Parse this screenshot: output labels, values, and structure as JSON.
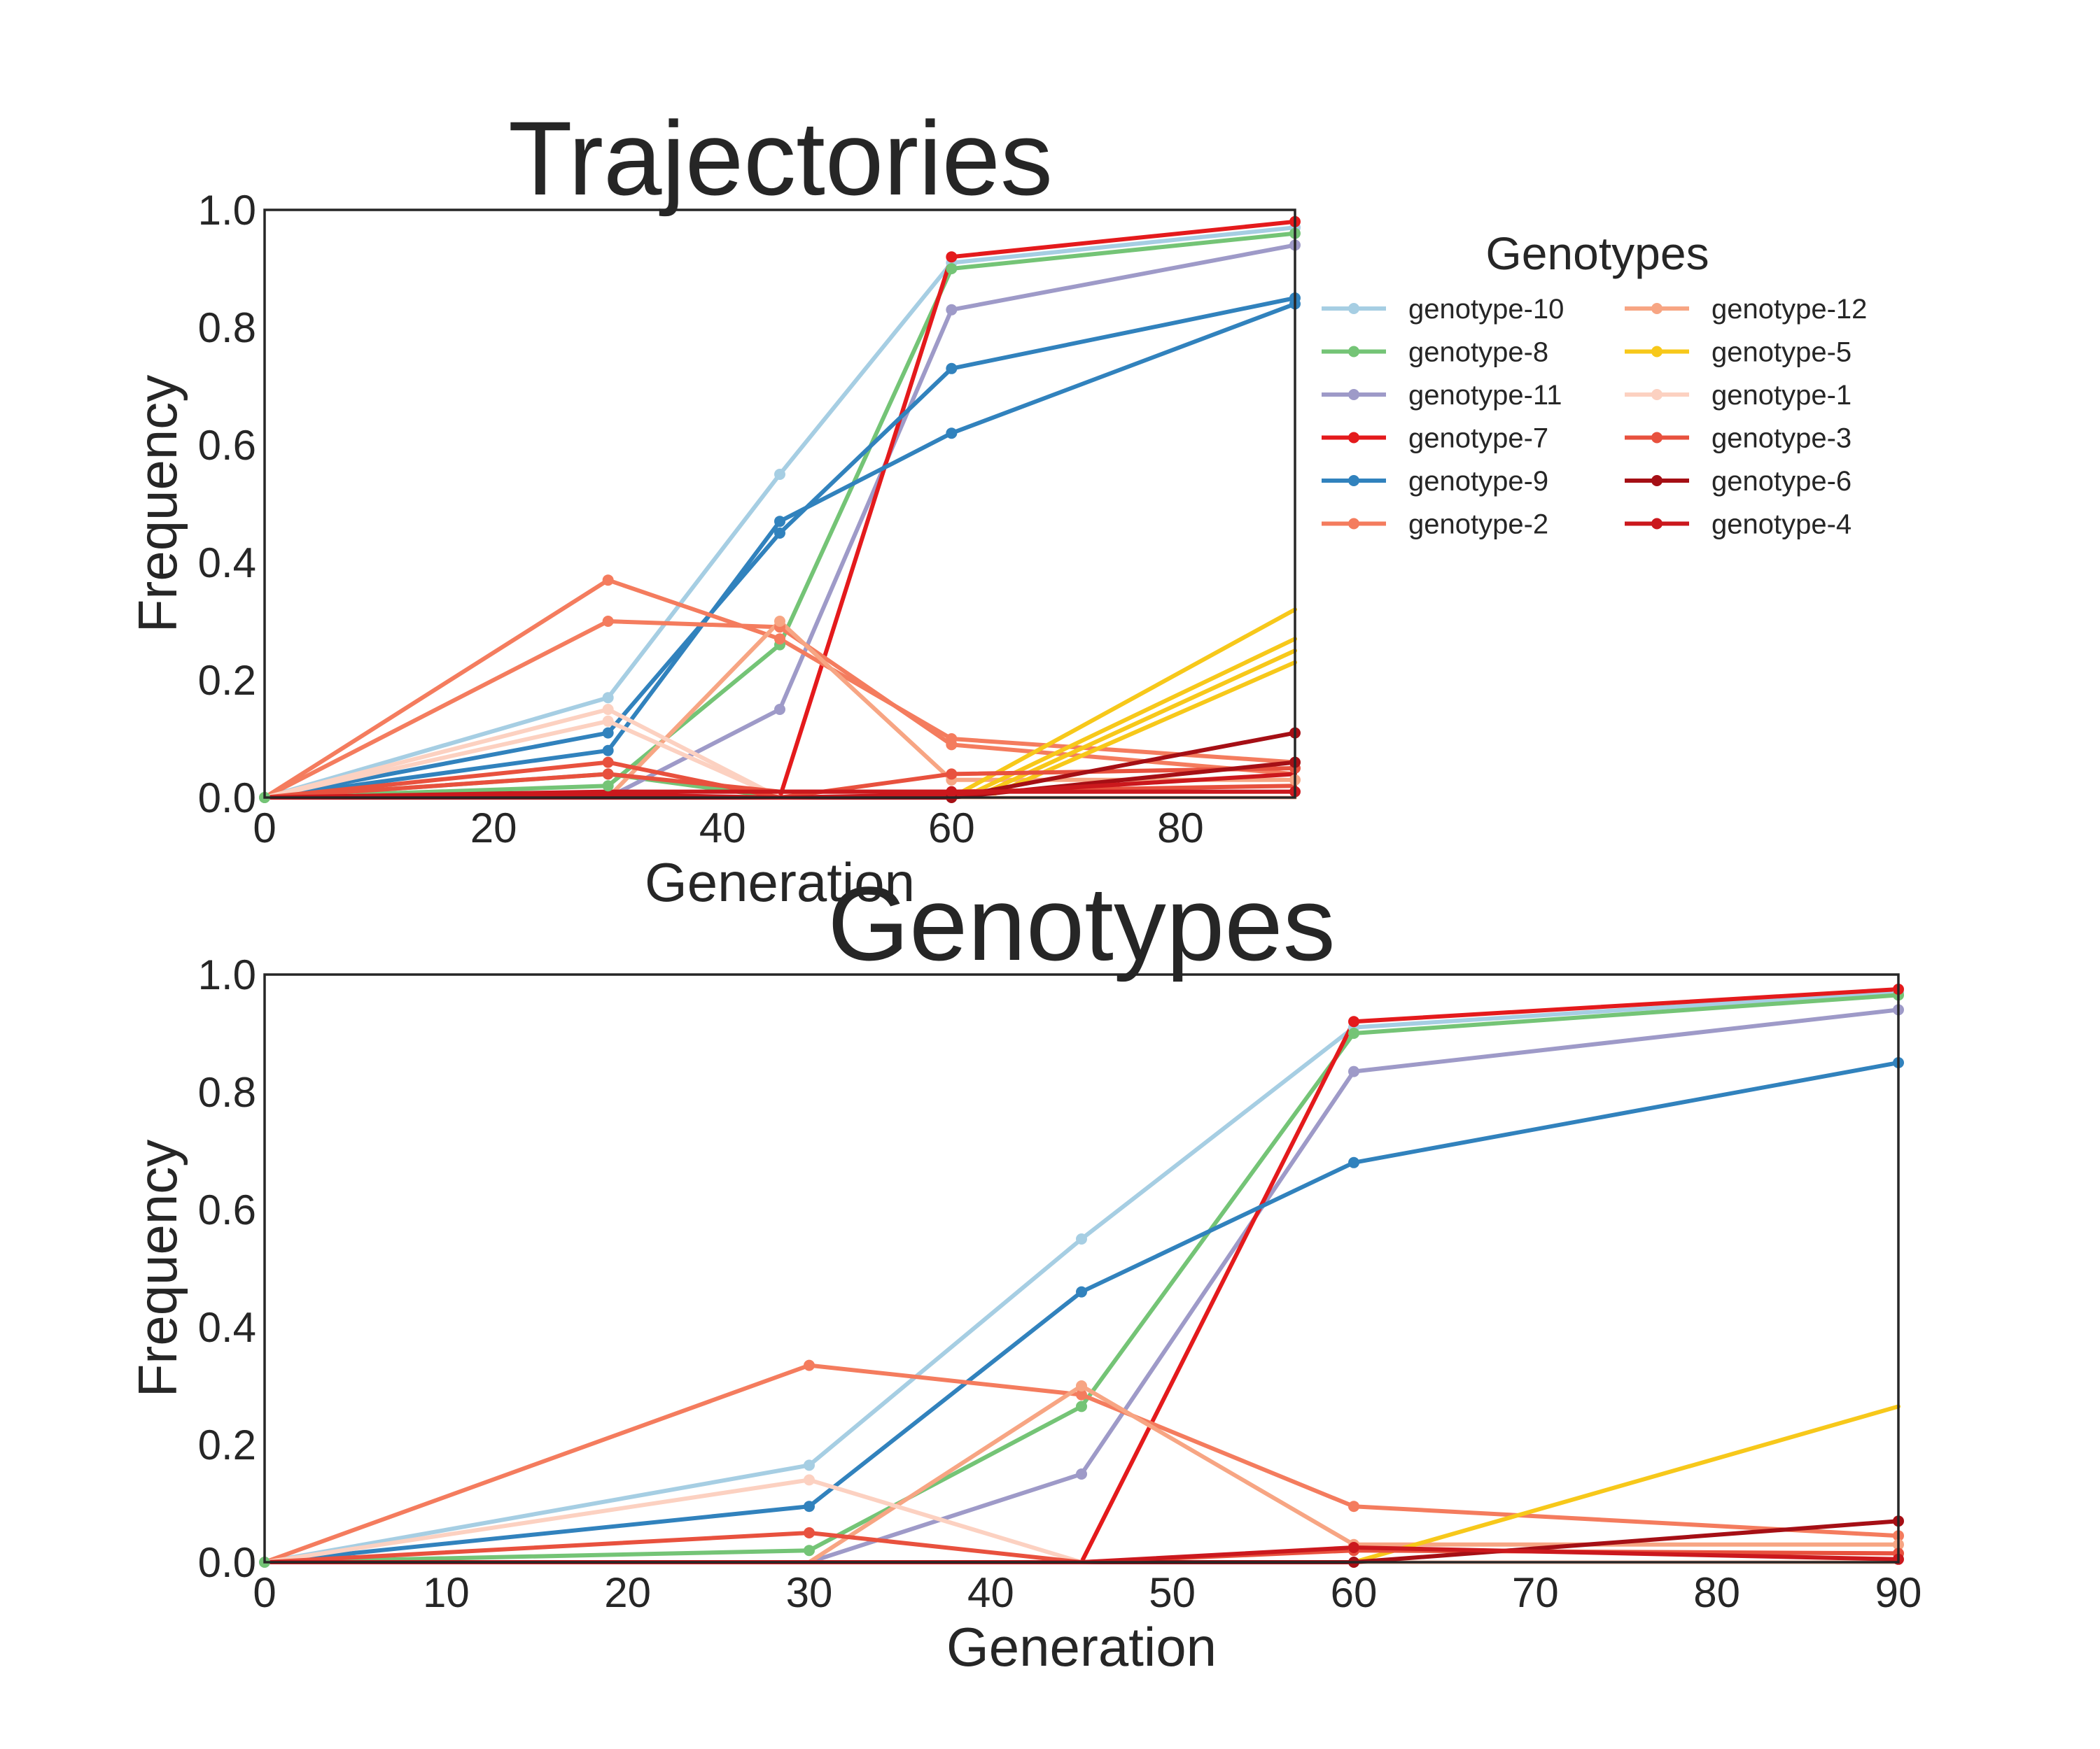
{
  "chart_data": [
    {
      "type": "line",
      "title": "Trajectories",
      "xlabel": "Generation",
      "ylabel": "Frequency",
      "xlim": [
        0,
        90
      ],
      "ylim": [
        0,
        1.0
      ],
      "x_ticks": [
        "0",
        "20",
        "40",
        "60",
        "80"
      ],
      "y_ticks": [
        "0.0",
        "0.2",
        "0.4",
        "0.6",
        "0.8",
        "1.0"
      ],
      "grid": false,
      "legend": {
        "title": "Genotypes",
        "placement": "outside-right",
        "entries": [
          {
            "name": "genotype-10",
            "color": "#a6cee3"
          },
          {
            "name": "genotype-8",
            "color": "#74c476"
          },
          {
            "name": "genotype-11",
            "color": "#9e9ac8"
          },
          {
            "name": "genotype-7",
            "color": "#e41a1c"
          },
          {
            "name": "genotype-9",
            "color": "#3182bd"
          },
          {
            "name": "genotype-2",
            "color": "#f47c5e"
          },
          {
            "name": "genotype-12",
            "color": "#f7a583"
          },
          {
            "name": "genotype-5",
            "color": "#f7c81a"
          },
          {
            "name": "genotype-1",
            "color": "#fcd1c1"
          },
          {
            "name": "genotype-3",
            "color": "#e8513e"
          },
          {
            "name": "genotype-6",
            "color": "#a50f15"
          },
          {
            "name": "genotype-4",
            "color": "#cb181d"
          }
        ]
      },
      "series": [
        {
          "color": "#a6cee3",
          "markers": [
            0,
            30,
            45,
            60,
            90
          ],
          "points": [
            [
              0,
              0
            ],
            [
              30,
              0.17
            ],
            [
              45,
              0.55
            ],
            [
              60,
              0.91
            ],
            [
              90,
              0.97
            ]
          ]
        },
        {
          "color": "#74c476",
          "markers": [
            0,
            30,
            45,
            60,
            90
          ],
          "points": [
            [
              0,
              0
            ],
            [
              30,
              0.02
            ],
            [
              45,
              0.26
            ],
            [
              60,
              0.9
            ],
            [
              90,
              0.96
            ]
          ]
        },
        {
          "color": "#74c476",
          "markers": [
            0,
            30
          ],
          "points": [
            [
              0,
              0
            ],
            [
              30,
              0.04
            ],
            [
              45,
              0
            ],
            [
              60,
              0
            ],
            [
              90,
              0
            ]
          ]
        },
        {
          "color": "#9e9ac8",
          "markers": [
            45,
            60,
            90
          ],
          "points": [
            [
              0,
              0
            ],
            [
              30,
              0
            ],
            [
              45,
              0.15
            ],
            [
              60,
              0.83
            ],
            [
              90,
              0.94
            ]
          ]
        },
        {
          "color": "#e41a1c",
          "markers": [
            60,
            90
          ],
          "points": [
            [
              0,
              0
            ],
            [
              30,
              0
            ],
            [
              45,
              0
            ],
            [
              60,
              0.92
            ],
            [
              90,
              0.98
            ]
          ]
        },
        {
          "color": "#3182bd",
          "markers": [
            30,
            45,
            60,
            90
          ],
          "points": [
            [
              0,
              0
            ],
            [
              30,
              0.11
            ],
            [
              45,
              0.45
            ],
            [
              60,
              0.73
            ],
            [
              90,
              0.85
            ]
          ]
        },
        {
          "color": "#3182bd",
          "markers": [
            30,
            45,
            60,
            90
          ],
          "points": [
            [
              0,
              0
            ],
            [
              30,
              0.08
            ],
            [
              45,
              0.47
            ],
            [
              60,
              0.62
            ],
            [
              90,
              0.84
            ]
          ]
        },
        {
          "color": "#f47c5e",
          "markers": [
            30,
            45,
            60,
            90
          ],
          "points": [
            [
              0,
              0
            ],
            [
              30,
              0.37
            ],
            [
              45,
              0.27
            ],
            [
              60,
              0.1
            ],
            [
              90,
              0.06
            ]
          ]
        },
        {
          "color": "#f47c5e",
          "markers": [
            30,
            45,
            60
          ],
          "points": [
            [
              0,
              0
            ],
            [
              30,
              0.3
            ],
            [
              45,
              0.29
            ],
            [
              60,
              0.09
            ],
            [
              90,
              0.04
            ]
          ]
        },
        {
          "color": "#f7a583",
          "markers": [
            45,
            60,
            90
          ],
          "points": [
            [
              0,
              0
            ],
            [
              30,
              0
            ],
            [
              45,
              0.3
            ],
            [
              60,
              0.03
            ],
            [
              90,
              0.03
            ]
          ]
        },
        {
          "color": "#f7c81a",
          "markers": [],
          "points": [
            [
              0,
              0
            ],
            [
              60,
              0
            ],
            [
              90,
              0.32
            ]
          ]
        },
        {
          "color": "#f7c81a",
          "markers": [],
          "points": [
            [
              0,
              0
            ],
            [
              61,
              0
            ],
            [
              90,
              0.27
            ]
          ]
        },
        {
          "color": "#f7c81a",
          "markers": [],
          "points": [
            [
              0,
              0
            ],
            [
              62,
              0
            ],
            [
              90,
              0.25
            ]
          ]
        },
        {
          "color": "#f7c81a",
          "markers": [],
          "points": [
            [
              0,
              0
            ],
            [
              63,
              0
            ],
            [
              90,
              0.23
            ]
          ]
        },
        {
          "color": "#fcd1c1",
          "markers": [
            30
          ],
          "points": [
            [
              0,
              0
            ],
            [
              30,
              0.15
            ],
            [
              45,
              0
            ],
            [
              60,
              0
            ],
            [
              90,
              0
            ]
          ]
        },
        {
          "color": "#fcd1c1",
          "markers": [
            30
          ],
          "points": [
            [
              0,
              0
            ],
            [
              30,
              0.13
            ],
            [
              45,
              0
            ],
            [
              60,
              0
            ],
            [
              90,
              0
            ]
          ]
        },
        {
          "color": "#e8513e",
          "markers": [
            30,
            60,
            90
          ],
          "points": [
            [
              0,
              0
            ],
            [
              30,
              0.06
            ],
            [
              45,
              0
            ],
            [
              60,
              0.04
            ],
            [
              90,
              0.05
            ]
          ]
        },
        {
          "color": "#e8513e",
          "markers": [
            30
          ],
          "points": [
            [
              0,
              0
            ],
            [
              30,
              0.04
            ],
            [
              45,
              0.01
            ],
            [
              60,
              0.01
            ],
            [
              90,
              0.02
            ]
          ]
        },
        {
          "color": "#a50f15",
          "markers": [
            60,
            90
          ],
          "points": [
            [
              0,
              0
            ],
            [
              30,
              0
            ],
            [
              45,
              0
            ],
            [
              60,
              0
            ],
            [
              90,
              0.11
            ]
          ]
        },
        {
          "color": "#a50f15",
          "markers": [
            90
          ],
          "points": [
            [
              0,
              0
            ],
            [
              30,
              0
            ],
            [
              45,
              0
            ],
            [
              60,
              0
            ],
            [
              90,
              0.06
            ]
          ]
        },
        {
          "color": "#cb181d",
          "markers": [
            60,
            90
          ],
          "points": [
            [
              0,
              0
            ],
            [
              30,
              0.01
            ],
            [
              45,
              0.01
            ],
            [
              60,
              0.01
            ],
            [
              90,
              0.01
            ]
          ]
        },
        {
          "color": "#cb181d",
          "markers": [],
          "points": [
            [
              0,
              0
            ],
            [
              30,
              0.005
            ],
            [
              45,
              0
            ],
            [
              60,
              0.005
            ],
            [
              90,
              0.04
            ]
          ]
        }
      ]
    },
    {
      "type": "line",
      "title": "Genotypes",
      "xlabel": "Generation",
      "ylabel": "Frequency",
      "xlim": [
        0,
        90
      ],
      "ylim": [
        0,
        1.0
      ],
      "x_ticks": [
        "0",
        "10",
        "20",
        "30",
        "40",
        "50",
        "60",
        "70",
        "80",
        "90"
      ],
      "y_ticks": [
        "0.0",
        "0.2",
        "0.4",
        "0.6",
        "0.8",
        "1.0"
      ],
      "grid": false,
      "series": [
        {
          "name": "genotype-10",
          "color": "#a6cee3",
          "markers": [
            0,
            30,
            45,
            60,
            90
          ],
          "points": [
            [
              0,
              0
            ],
            [
              30,
              0.165
            ],
            [
              45,
              0.55
            ],
            [
              60,
              0.91
            ],
            [
              90,
              0.97
            ]
          ]
        },
        {
          "name": "genotype-8",
          "color": "#74c476",
          "markers": [
            0,
            30,
            45,
            60,
            90
          ],
          "points": [
            [
              0,
              0
            ],
            [
              30,
              0.02
            ],
            [
              45,
              0.265
            ],
            [
              60,
              0.9
            ],
            [
              90,
              0.965
            ]
          ]
        },
        {
          "name": "genotype-11",
          "color": "#9e9ac8",
          "markers": [
            45,
            60,
            90
          ],
          "points": [
            [
              0,
              0
            ],
            [
              30,
              0
            ],
            [
              45,
              0.15
            ],
            [
              60,
              0.835
            ],
            [
              90,
              0.94
            ]
          ]
        },
        {
          "name": "genotype-7",
          "color": "#e41a1c",
          "markers": [
            60,
            90
          ],
          "points": [
            [
              0,
              0
            ],
            [
              30,
              0
            ],
            [
              45,
              0
            ],
            [
              60,
              0.92
            ],
            [
              90,
              0.975
            ]
          ]
        },
        {
          "name": "genotype-9",
          "color": "#3182bd",
          "markers": [
            30,
            45,
            60,
            90
          ],
          "points": [
            [
              0,
              0
            ],
            [
              30,
              0.095
            ],
            [
              45,
              0.46
            ],
            [
              60,
              0.68
            ],
            [
              90,
              0.85
            ]
          ]
        },
        {
          "name": "genotype-2",
          "color": "#f47c5e",
          "markers": [
            30,
            45,
            60,
            90
          ],
          "points": [
            [
              0,
              0
            ],
            [
              30,
              0.335
            ],
            [
              45,
              0.285
            ],
            [
              60,
              0.095
            ],
            [
              90,
              0.045
            ]
          ]
        },
        {
          "name": "genotype-12",
          "color": "#f7a583",
          "markers": [
            45,
            60,
            90
          ],
          "points": [
            [
              0,
              0
            ],
            [
              30,
              0
            ],
            [
              45,
              0.3
            ],
            [
              60,
              0.03
            ],
            [
              90,
              0.03
            ]
          ]
        },
        {
          "name": "genotype-5",
          "color": "#f7c81a",
          "markers": [],
          "points": [
            [
              0,
              0
            ],
            [
              60,
              0
            ],
            [
              90,
              0.265
            ]
          ]
        },
        {
          "name": "genotype-1",
          "color": "#fcd1c1",
          "markers": [
            30
          ],
          "points": [
            [
              0,
              0
            ],
            [
              30,
              0.14
            ],
            [
              45,
              0
            ],
            [
              60,
              0
            ],
            [
              90,
              0
            ]
          ]
        },
        {
          "name": "genotype-3",
          "color": "#e8513e",
          "markers": [
            30,
            60,
            90
          ],
          "points": [
            [
              0,
              0
            ],
            [
              30,
              0.05
            ],
            [
              45,
              0
            ],
            [
              60,
              0.02
            ],
            [
              90,
              0.015
            ]
          ]
        },
        {
          "name": "genotype-6",
          "color": "#a50f15",
          "markers": [
            60,
            90
          ],
          "points": [
            [
              0,
              0
            ],
            [
              30,
              0
            ],
            [
              45,
              0
            ],
            [
              60,
              0
            ],
            [
              90,
              0.07
            ]
          ]
        },
        {
          "name": "genotype-4",
          "color": "#cb181d",
          "markers": [
            60,
            90
          ],
          "points": [
            [
              0,
              0
            ],
            [
              30,
              0
            ],
            [
              45,
              0
            ],
            [
              60,
              0.025
            ],
            [
              90,
              0.005
            ]
          ]
        }
      ]
    }
  ]
}
